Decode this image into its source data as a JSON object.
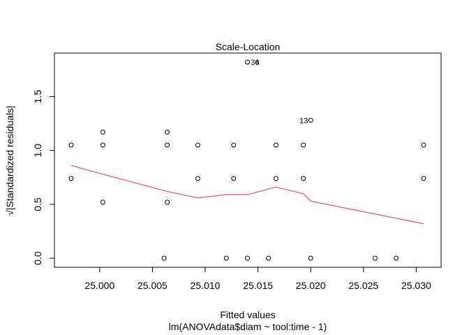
{
  "chart_data": {
    "type": "scatter",
    "title": "Scale-Location",
    "xlabel": "Fitted values",
    "sublabel": "lm(ANOVAdata$diam ~ tool:time - 1)",
    "ylabel": "√|Standardized residuals|",
    "xlim": [
      24.9971,
      25.0309
    ],
    "ylim": [
      0.0,
      1.82
    ],
    "x_ticks": [
      {
        "value": 25.0,
        "label": "25.000"
      },
      {
        "value": 25.005,
        "label": "25.005"
      },
      {
        "value": 25.01,
        "label": "25.010"
      },
      {
        "value": 25.015,
        "label": "25.015"
      },
      {
        "value": 25.02,
        "label": "25.020"
      },
      {
        "value": 25.025,
        "label": "25.025"
      },
      {
        "value": 25.03,
        "label": "25.030"
      }
    ],
    "y_ticks": [
      {
        "value": 0.0,
        "label": "0.0"
      },
      {
        "value": 0.5,
        "label": "0.5"
      },
      {
        "value": 1.0,
        "label": "1.0"
      },
      {
        "value": 1.5,
        "label": "1.5"
      }
    ],
    "grid": false,
    "points": [
      {
        "x": 24.9973,
        "y": 1.05
      },
      {
        "x": 24.9973,
        "y": 0.74
      },
      {
        "x": 25.0003,
        "y": 1.17
      },
      {
        "x": 25.0003,
        "y": 1.05
      },
      {
        "x": 25.0003,
        "y": 0.52
      },
      {
        "x": 25.0061,
        "y": 0.0
      },
      {
        "x": 25.0064,
        "y": 1.17
      },
      {
        "x": 25.0064,
        "y": 1.05
      },
      {
        "x": 25.0064,
        "y": 0.52
      },
      {
        "x": 25.0093,
        "y": 1.05
      },
      {
        "x": 25.0093,
        "y": 0.74
      },
      {
        "x": 25.012,
        "y": 0.0
      },
      {
        "x": 25.0127,
        "y": 1.05
      },
      {
        "x": 25.0127,
        "y": 0.74
      },
      {
        "x": 25.014,
        "y": 1.82
      },
      {
        "x": 25.014,
        "y": 0.0
      },
      {
        "x": 25.016,
        "y": 0.0
      },
      {
        "x": 25.0167,
        "y": 1.05
      },
      {
        "x": 25.0167,
        "y": 0.74
      },
      {
        "x": 25.0193,
        "y": 1.05
      },
      {
        "x": 25.0193,
        "y": 0.74
      },
      {
        "x": 25.02,
        "y": 1.28
      },
      {
        "x": 25.02,
        "y": 0.0
      },
      {
        "x": 25.0261,
        "y": 0.0
      },
      {
        "x": 25.0281,
        "y": 0.0
      },
      {
        "x": 25.0307,
        "y": 1.05
      },
      {
        "x": 25.0307,
        "y": 0.74
      }
    ],
    "point_labels": [
      {
        "x": 25.014,
        "y": 1.82,
        "text": "36"
      },
      {
        "x": 25.014,
        "y": 1.82,
        "text": "4"
      },
      {
        "x": 25.02,
        "y": 1.28,
        "text": "13"
      }
    ],
    "smooth_line": {
      "color": "#DF536B",
      "x": [
        24.9973,
        25.0003,
        25.0064,
        25.0093,
        25.012,
        25.014,
        25.0167,
        25.0193,
        25.02,
        25.0307
      ],
      "y": [
        0.86,
        0.78,
        0.62,
        0.56,
        0.59,
        0.59,
        0.66,
        0.6,
        0.53,
        0.32
      ]
    }
  }
}
